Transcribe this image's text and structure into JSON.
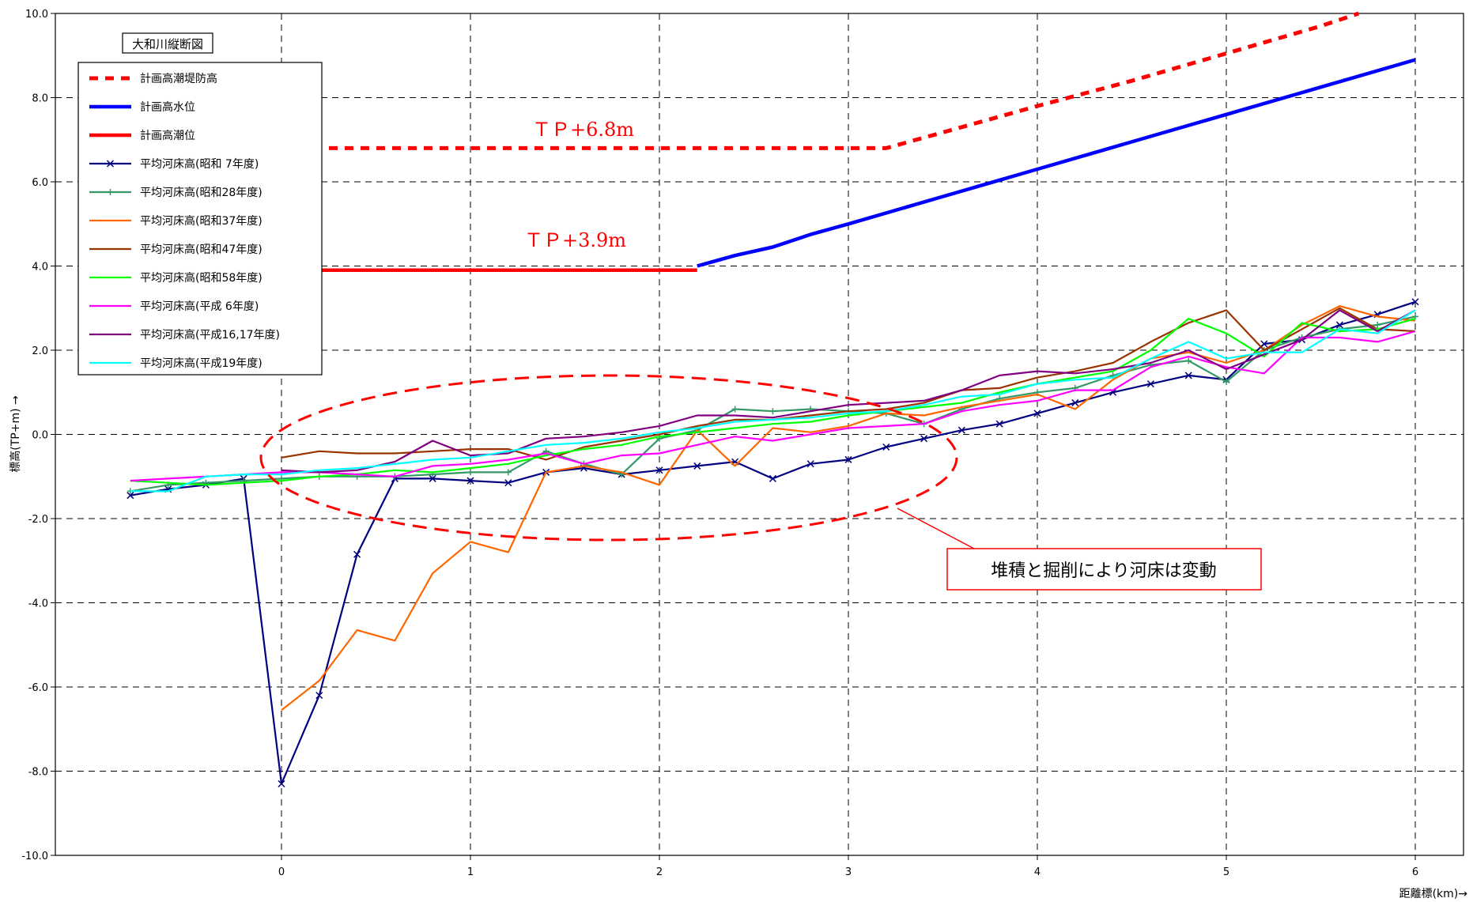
{
  "chart_data": {
    "type": "line",
    "title": "大和川縦断図",
    "xlabel": "距離標(km)→",
    "ylabel": "標高(TP+m) →",
    "xlim": [
      -0.8,
      6.0
    ],
    "ylim": [
      -10,
      10
    ],
    "x_ticks": [
      0,
      1,
      2,
      3,
      4,
      5,
      6
    ],
    "y_ticks": [
      -10,
      -8,
      -6,
      -4,
      -2,
      0,
      2,
      4,
      6,
      8,
      10
    ],
    "y_tick_labels": [
      "-10.0",
      "-8.0",
      "-6.0",
      "-4.0",
      "-2.0",
      "0.0",
      "2.0",
      "4.0",
      "6.0",
      "8.0",
      "10.0"
    ],
    "grid": true,
    "legend_position": "top-left",
    "annotations": {
      "tp_high": "ＴＰ+6.8m",
      "tp_low": "ＴＰ+3.9m",
      "callout": "堆積と掘削により河床は変動"
    },
    "series": [
      {
        "name": "計画高潮堤防高",
        "color": "#ff0000",
        "style": "dotted-thick",
        "x": [
          0,
          1,
          2,
          3,
          3.2,
          3.4,
          3.6,
          3.8,
          4.0,
          4.5,
          5.0,
          5.5,
          5.7
        ],
        "y": [
          6.8,
          6.8,
          6.8,
          6.8,
          6.8,
          7.05,
          7.3,
          7.55,
          7.8,
          8.4,
          9.05,
          9.7,
          10.0
        ]
      },
      {
        "name": "計画高水位",
        "color": "#0000ff",
        "style": "solid-thick",
        "x": [
          2.2,
          2.4,
          2.6,
          2.8,
          3.0,
          3.5,
          4.0,
          4.5,
          5.0,
          5.5,
          6.0
        ],
        "y": [
          4.0,
          4.25,
          4.45,
          4.75,
          5.0,
          5.65,
          6.3,
          6.95,
          7.6,
          8.25,
          8.9
        ]
      },
      {
        "name": "計画高潮位",
        "color": "#ff0000",
        "style": "solid-thick",
        "x": [
          0,
          2.2
        ],
        "y": [
          3.9,
          3.9
        ]
      },
      {
        "name": "平均河床高(昭和 7年度)",
        "color": "#000080",
        "style": "marker-x",
        "x": [
          -0.8,
          -0.6,
          -0.4,
          -0.2,
          0,
          0.2,
          0.4,
          0.6,
          0.8,
          1.0,
          1.2,
          1.4,
          1.6,
          1.8,
          2.0,
          2.2,
          2.4,
          2.6,
          2.8,
          3.0,
          3.2,
          3.4,
          3.6,
          3.8,
          4.0,
          4.2,
          4.4,
          4.6,
          4.8,
          5.0,
          5.2,
          5.4,
          5.6,
          5.8,
          6.0
        ],
        "y": [
          -1.45,
          -1.3,
          -1.2,
          -1.05,
          -8.3,
          -6.2,
          -2.85,
          -1.05,
          -1.05,
          -1.1,
          -1.15,
          -0.9,
          -0.8,
          -0.95,
          -0.85,
          -0.75,
          -0.65,
          -1.05,
          -0.7,
          -0.6,
          -0.3,
          -0.1,
          0.1,
          0.25,
          0.5,
          0.75,
          1.0,
          1.2,
          1.4,
          1.3,
          2.15,
          2.25,
          2.6,
          2.85,
          3.15
        ]
      },
      {
        "name": "平均河床高(昭和28年度)",
        "color": "#339966",
        "style": "marker-plus",
        "x": [
          -0.8,
          -0.6,
          -0.4,
          -0.2,
          0,
          0.2,
          0.4,
          0.6,
          0.8,
          1.0,
          1.2,
          1.4,
          1.6,
          1.8,
          2.0,
          2.2,
          2.4,
          2.6,
          2.8,
          3.0,
          3.2,
          3.4,
          3.6,
          3.8,
          4.0,
          4.2,
          4.4,
          4.6,
          4.8,
          5.0,
          5.2,
          5.4,
          5.6,
          5.8,
          6.0
        ],
        "y": [
          -1.35,
          -1.2,
          -1.15,
          -1.1,
          -1.05,
          -1.0,
          -1.0,
          -1.0,
          -0.95,
          -0.9,
          -0.9,
          -0.4,
          -0.7,
          -0.95,
          -0.1,
          0.1,
          0.6,
          0.55,
          0.6,
          0.55,
          0.5,
          0.25,
          0.6,
          0.85,
          1.0,
          1.1,
          1.4,
          1.65,
          1.75,
          1.25,
          2.0,
          2.3,
          2.5,
          2.6,
          2.8
        ]
      },
      {
        "name": "平均河床高(昭和37年度)",
        "color": "#ff6600",
        "style": "solid",
        "x": [
          0,
          0.2,
          0.4,
          0.6,
          0.8,
          1.0,
          1.2,
          1.4,
          1.6,
          1.8,
          2.0,
          2.2,
          2.4,
          2.6,
          2.8,
          3.0,
          3.2,
          3.4,
          3.6,
          3.8,
          4.0,
          4.2,
          4.4,
          4.6,
          4.8,
          5.0,
          5.2,
          5.4,
          5.6,
          5.8,
          6.0
        ],
        "y": [
          -6.55,
          -5.85,
          -4.65,
          -4.9,
          -3.3,
          -2.55,
          -2.8,
          -0.9,
          -0.75,
          -0.9,
          -1.2,
          0.1,
          -0.75,
          0.15,
          0.05,
          0.2,
          0.5,
          0.45,
          0.65,
          0.8,
          0.95,
          0.6,
          1.3,
          1.8,
          1.95,
          1.7,
          2.0,
          2.6,
          3.05,
          2.8,
          2.7
        ]
      },
      {
        "name": "平均河床高(昭和47年度)",
        "color": "#993300",
        "style": "solid",
        "x": [
          0,
          0.2,
          0.4,
          0.6,
          0.8,
          1.0,
          1.2,
          1.4,
          1.6,
          1.8,
          2.0,
          2.2,
          2.4,
          2.6,
          2.8,
          3.0,
          3.2,
          3.4,
          3.6,
          3.8,
          4.0,
          4.2,
          4.4,
          4.6,
          4.8,
          5.0,
          5.2,
          5.4,
          5.6,
          5.8,
          6.0
        ],
        "y": [
          -0.55,
          -0.4,
          -0.45,
          -0.45,
          -0.4,
          -0.35,
          -0.35,
          -0.6,
          -0.3,
          -0.15,
          0.0,
          0.2,
          0.35,
          0.35,
          0.45,
          0.55,
          0.6,
          0.75,
          1.05,
          1.1,
          1.35,
          1.5,
          1.7,
          2.2,
          2.65,
          2.95,
          2.0,
          2.5,
          3.0,
          2.5,
          2.45
        ]
      },
      {
        "name": "平均河床高(昭和58年度)",
        "color": "#00ff00",
        "style": "solid",
        "x": [
          -0.8,
          -0.6,
          -0.4,
          -0.2,
          0,
          0.2,
          0.4,
          0.6,
          0.8,
          1.0,
          1.2,
          1.4,
          1.6,
          1.8,
          2.0,
          2.2,
          2.4,
          2.6,
          2.8,
          3.0,
          3.2,
          3.4,
          3.6,
          3.8,
          4.0,
          4.2,
          4.4,
          4.6,
          4.8,
          5.0,
          5.2,
          5.4,
          5.6,
          5.8,
          6.0
        ],
        "y": [
          -1.1,
          -1.15,
          -1.2,
          -1.15,
          -1.1,
          -1.0,
          -0.95,
          -0.85,
          -0.9,
          -0.8,
          -0.7,
          -0.5,
          -0.35,
          -0.25,
          -0.05,
          0.05,
          0.15,
          0.25,
          0.3,
          0.45,
          0.55,
          0.65,
          0.75,
          1.0,
          1.2,
          1.35,
          1.5,
          2.0,
          2.75,
          2.4,
          1.85,
          2.65,
          2.45,
          2.5,
          2.75
        ]
      },
      {
        "name": "平均河床高(平成 6年度)",
        "color": "#ff00ff",
        "style": "solid",
        "x": [
          -0.8,
          -0.6,
          -0.4,
          -0.2,
          0,
          0.2,
          0.4,
          0.6,
          0.8,
          1.0,
          1.2,
          1.4,
          1.6,
          1.8,
          2.0,
          2.2,
          2.4,
          2.6,
          2.8,
          3.0,
          3.2,
          3.4,
          3.6,
          3.8,
          4.0,
          4.2,
          4.4,
          4.6,
          4.8,
          5.0,
          5.2,
          5.4,
          5.6,
          5.8,
          6.0
        ],
        "y": [
          -1.1,
          -1.05,
          -1.0,
          -0.95,
          -0.9,
          -0.9,
          -0.95,
          -1.0,
          -0.75,
          -0.7,
          -0.6,
          -0.45,
          -0.7,
          -0.5,
          -0.45,
          -0.25,
          -0.05,
          -0.15,
          0.0,
          0.15,
          0.2,
          0.25,
          0.55,
          0.7,
          0.8,
          1.05,
          1.05,
          1.6,
          1.85,
          1.6,
          1.45,
          2.3,
          2.3,
          2.2,
          2.45
        ]
      },
      {
        "name": "平均河床高(平成16,17年度)",
        "color": "#800080",
        "style": "solid",
        "x": [
          0,
          0.2,
          0.4,
          0.6,
          0.8,
          1.0,
          1.2,
          1.4,
          1.6,
          1.8,
          2.0,
          2.2,
          2.4,
          2.6,
          2.8,
          3.0,
          3.2,
          3.4,
          3.6,
          3.8,
          4.0,
          4.2,
          4.4,
          4.6,
          4.8,
          5.0,
          5.2,
          5.4,
          5.6,
          5.8,
          6.0
        ],
        "y": [
          -0.85,
          -0.9,
          -0.85,
          -0.65,
          -0.15,
          -0.5,
          -0.45,
          -0.1,
          -0.05,
          0.05,
          0.2,
          0.45,
          0.45,
          0.4,
          0.55,
          0.7,
          0.75,
          0.8,
          1.05,
          1.4,
          1.5,
          1.45,
          1.55,
          1.7,
          2.0,
          1.55,
          1.9,
          2.25,
          2.95,
          2.45,
          2.95
        ]
      },
      {
        "name": "平均河床高(平成19年度)",
        "color": "#00ffff",
        "style": "solid",
        "x": [
          -0.8,
          -0.6,
          -0.4,
          -0.2,
          0,
          0.2,
          0.4,
          0.6,
          0.8,
          1.0,
          1.2,
          1.4,
          1.6,
          1.8,
          2.0,
          2.2,
          2.4,
          2.6,
          2.8,
          3.0,
          3.2,
          3.4,
          3.6,
          3.8,
          4.0,
          4.2,
          4.4,
          4.6,
          4.8,
          5.0,
          5.2,
          5.4,
          5.6,
          5.8,
          6.0
        ],
        "y": [
          -1.35,
          -1.35,
          -1.0,
          -0.95,
          -0.95,
          -0.85,
          -0.8,
          -0.7,
          -0.6,
          -0.55,
          -0.4,
          -0.25,
          -0.2,
          -0.1,
          0.05,
          0.15,
          0.3,
          0.35,
          0.4,
          0.5,
          0.55,
          0.7,
          0.9,
          0.95,
          1.2,
          1.3,
          1.35,
          1.8,
          2.2,
          1.8,
          1.95,
          1.95,
          2.5,
          2.4,
          2.95
        ]
      }
    ]
  }
}
